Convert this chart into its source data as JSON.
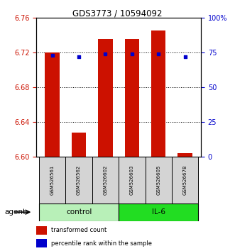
{
  "title": "GDS3773 / 10594092",
  "samples": [
    "GSM526561",
    "GSM526562",
    "GSM526602",
    "GSM526603",
    "GSM526605",
    "GSM526678"
  ],
  "groups": [
    "control",
    "control",
    "control",
    "IL-6",
    "IL-6",
    "IL-6"
  ],
  "bar_values": [
    6.72,
    6.628,
    6.735,
    6.735,
    6.745,
    6.604
  ],
  "bar_bottom": 6.6,
  "percentile_values": [
    73,
    72,
    74,
    74,
    74,
    72
  ],
  "ylim_left": [
    6.6,
    6.76
  ],
  "ylim_right": [
    0,
    100
  ],
  "yticks_left": [
    6.6,
    6.64,
    6.68,
    6.72,
    6.76
  ],
  "yticks_right": [
    0,
    25,
    50,
    75,
    100
  ],
  "bar_color": "#cc1100",
  "point_color": "#0000cc",
  "group_colors": {
    "control": "#b8f0b8",
    "IL-6": "#22dd22"
  },
  "legend_bar_label": "transformed count",
  "legend_point_label": "percentile rank within the sample",
  "agent_label": "agent",
  "background_color": "#ffffff",
  "plot_bg_color": "#ffffff",
  "grid_color": "#000000",
  "tick_label_color_left": "#cc1100",
  "tick_label_color_right": "#0000cc",
  "bar_width": 0.55,
  "figsize": [
    3.31,
    3.54
  ],
  "dpi": 100
}
